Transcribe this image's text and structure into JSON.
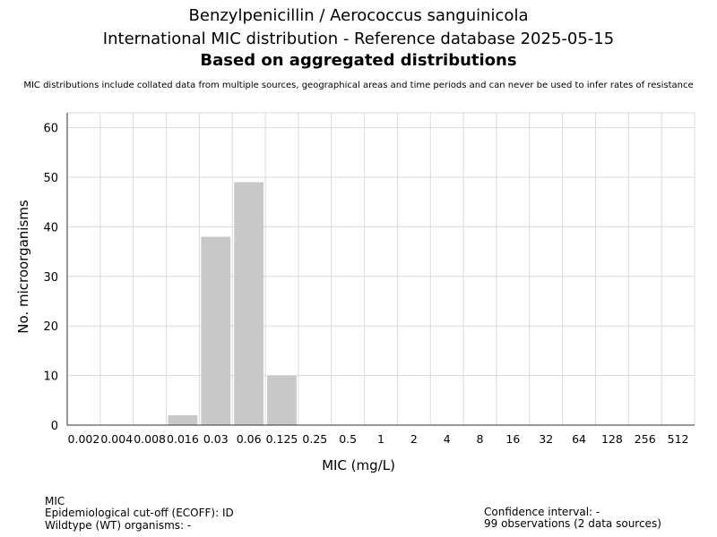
{
  "header": {
    "title_line1": "Benzylpenicillin / Aerococcus sanguinicola",
    "title_line2": "International MIC distribution - Reference database 2025-05-15",
    "title_line3": "Based on aggregated distributions",
    "note": "MIC distributions include collated data from multiple sources, geographical areas and time periods and can never be used to infer rates of resistance"
  },
  "chart_data": {
    "type": "bar",
    "xlabel": "MIC (mg/L)",
    "ylabel": "No. microorganisms",
    "ylim": [
      0,
      63
    ],
    "yticks": [
      0,
      10,
      20,
      30,
      40,
      50,
      60
    ],
    "grid": true,
    "categories": [
      "0.002",
      "0.004",
      "0.008",
      "0.016",
      "0.03",
      "0.06",
      "0.125",
      "0.25",
      "0.5",
      "1",
      "2",
      "4",
      "8",
      "16",
      "32",
      "64",
      "128",
      "256",
      "512"
    ],
    "values": [
      0,
      0,
      0,
      2,
      38,
      49,
      10,
      0,
      0,
      0,
      0,
      0,
      0,
      0,
      0,
      0,
      0,
      0,
      0
    ],
    "bar_color": "#c8c8c8",
    "grid_color": "#d9d9d9"
  },
  "footer": {
    "mic_label": "MIC",
    "ecoff": "Epidemiological cut-off (ECOFF): ID",
    "wildtype": "Wildtype (WT) organisms:  -",
    "confidence": "Confidence interval: -",
    "observations": "99 observations (2 data sources)"
  }
}
